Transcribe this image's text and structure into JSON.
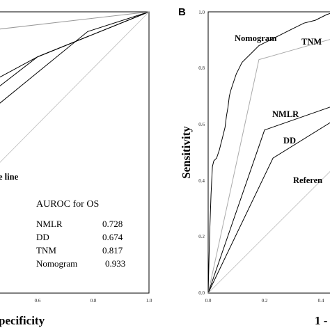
{
  "chart_data": [
    {
      "type": "line",
      "panel": "",
      "xlabel": "pecificity",
      "ylabel": "",
      "xlim": [
        0,
        1
      ],
      "ylim": [
        0,
        1
      ],
      "x_tick_labels": [
        "0.6",
        "0.8",
        "1.0"
      ],
      "series": [
        {
          "name": "NMLR",
          "color": "#000000",
          "x": [
            0.0,
            0.6,
            1.0
          ],
          "y": [
            0.52,
            0.84,
            1.0
          ]
        },
        {
          "name": "DD",
          "color": "#000000",
          "x": [
            0.0,
            0.78,
            1.0
          ],
          "y": [
            0.3,
            0.93,
            1.0
          ]
        },
        {
          "name": "TNM",
          "color": "#000000",
          "x": [
            0.0,
            0.6,
            1.0
          ],
          "y": [
            0.38,
            0.84,
            1.0
          ]
        },
        {
          "name": "Nomogram",
          "color": "#999999",
          "x": [
            0.0,
            0.1,
            0.3,
            1.0
          ],
          "y": [
            0.8,
            0.86,
            0.92,
            1.0
          ]
        },
        {
          "name": "Reference line",
          "color": "#bbbbbb",
          "x": [
            0.0,
            1.0
          ],
          "y": [
            0.0,
            1.0
          ]
        }
      ],
      "annotations": [
        "e line"
      ],
      "table": {
        "title": "AUROC for OS",
        "rows": [
          {
            "label": "NMLR",
            "value": "0.728"
          },
          {
            "label": "DD",
            "value": "0.674"
          },
          {
            "label": "TNM",
            "value": "0.817"
          },
          {
            "label": "Nomogram",
            "value": "0.933"
          }
        ]
      }
    },
    {
      "type": "line",
      "panel": "B",
      "xlabel": "1 -",
      "ylabel": "Sensitivity",
      "xlim": [
        0,
        1
      ],
      "ylim": [
        0,
        1
      ],
      "x_tick_labels": [
        "0.0",
        "0.2",
        "0.4"
      ],
      "y_tick_labels": [
        "0.0",
        "0.2",
        "0.4",
        "0.6",
        "0.8",
        "1.0"
      ],
      "series": [
        {
          "name": "Nomogram",
          "color": "#000000",
          "x": [
            0.0,
            0.005,
            0.01,
            0.015,
            0.02,
            0.03,
            0.04,
            0.045,
            0.05,
            0.06,
            0.065,
            0.07,
            0.075,
            0.08,
            0.09,
            0.1,
            0.11,
            0.12,
            0.14,
            0.15,
            0.16,
            0.18,
            0.2,
            0.22,
            0.26,
            0.3,
            0.34,
            0.38,
            0.42,
            0.45,
            0.5,
            0.55,
            0.6,
            0.7,
            0.8,
            1.0
          ],
          "y": [
            0.0,
            0.2,
            0.35,
            0.45,
            0.47,
            0.48,
            0.51,
            0.53,
            0.55,
            0.59,
            0.63,
            0.66,
            0.7,
            0.72,
            0.75,
            0.78,
            0.8,
            0.82,
            0.84,
            0.85,
            0.86,
            0.88,
            0.89,
            0.9,
            0.92,
            0.94,
            0.96,
            0.97,
            0.99,
            1.0,
            1.0,
            1.0,
            1.0,
            1.0,
            1.0,
            1.0
          ]
        },
        {
          "name": "TNM",
          "color": "#aaaaaa",
          "x": [
            0.0,
            0.18,
            0.6,
            1.0
          ],
          "y": [
            0.0,
            0.83,
            0.95,
            1.0
          ]
        },
        {
          "name": "NMLR",
          "color": "#000000",
          "x": [
            0.0,
            0.2,
            0.6,
            1.0
          ],
          "y": [
            0.0,
            0.58,
            0.72,
            1.0
          ]
        },
        {
          "name": "DD",
          "color": "#000000",
          "x": [
            0.0,
            0.23,
            0.6,
            1.0
          ],
          "y": [
            0.0,
            0.48,
            0.71,
            1.0
          ]
        },
        {
          "name": "Reference line",
          "color": "#bbbbbb",
          "x": [
            0.0,
            1.0
          ],
          "y": [
            0.0,
            1.0
          ]
        }
      ],
      "labels": [
        "Nomogram",
        "TNM",
        "NMLR",
        "DD",
        "Referen"
      ]
    }
  ]
}
